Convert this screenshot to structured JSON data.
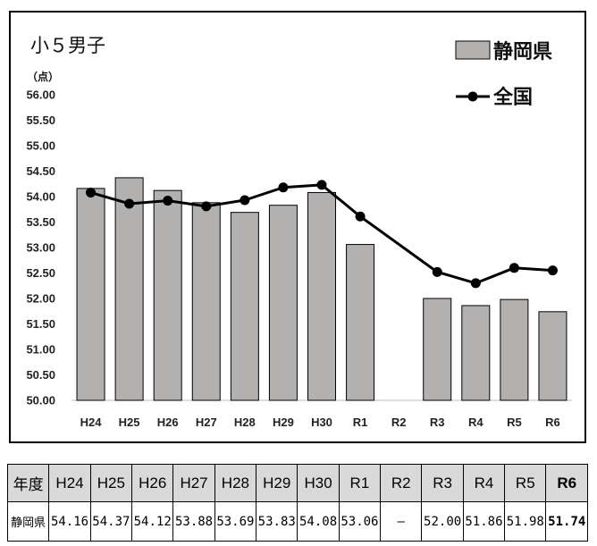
{
  "chart_data": {
    "type": "bar",
    "title": "小５男子",
    "unit_label": "（点）",
    "categories": [
      "H24",
      "H25",
      "H26",
      "H27",
      "H28",
      "H29",
      "H30",
      "R1",
      "R2",
      "R3",
      "R4",
      "R5",
      "R6"
    ],
    "series": [
      {
        "name": "静岡県",
        "kind": "bar",
        "color": "#b3b0b0",
        "values": [
          54.16,
          54.37,
          54.12,
          53.88,
          53.69,
          53.83,
          54.08,
          53.06,
          null,
          52.0,
          51.86,
          51.98,
          51.74
        ]
      },
      {
        "name": "全国",
        "kind": "line",
        "color": "#000000",
        "values": [
          54.08,
          53.86,
          53.92,
          53.81,
          53.93,
          54.18,
          54.23,
          53.61,
          null,
          52.52,
          52.3,
          52.6,
          52.55
        ]
      }
    ],
    "ylim": [
      50.0,
      56.0
    ],
    "yticks": [
      "50.00",
      "50.50",
      "51.00",
      "51.50",
      "52.00",
      "52.50",
      "53.00",
      "53.50",
      "54.00",
      "54.50",
      "55.00",
      "55.50",
      "56.00"
    ],
    "grid": false,
    "legend_position": "top-right"
  },
  "table": {
    "header_label": "年度",
    "row_label": "静岡県",
    "years": [
      "H24",
      "H25",
      "H26",
      "H27",
      "H28",
      "H29",
      "H30",
      "R1",
      "R2",
      "R3",
      "R4",
      "R5",
      "R6"
    ],
    "values": [
      "54.16",
      "54.37",
      "54.12",
      "53.88",
      "53.69",
      "53.83",
      "54.08",
      "53.06",
      "―",
      "52.00",
      "51.86",
      "51.98",
      "51.74"
    ]
  }
}
